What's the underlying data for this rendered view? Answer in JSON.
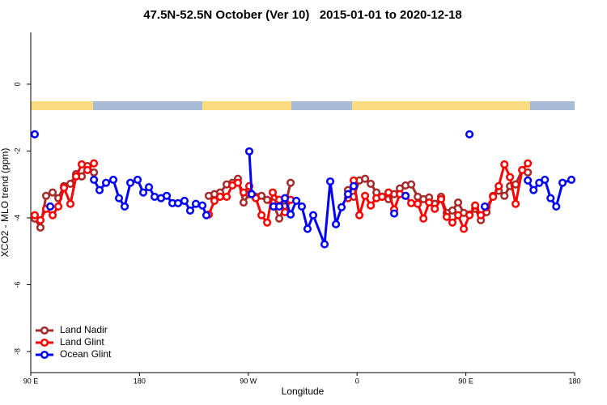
{
  "chart_data": {
    "type": "line",
    "title": "47.5N-52.5N October (Ver 10)   2015-01-01 to 2020-12-18",
    "x_label": "Longitude",
    "y_label": "XCO2 - MLO trend (ppm)",
    "xlim": [
      90,
      540
    ],
    "xticks": [
      {
        "value": 90,
        "label": "90 E"
      },
      {
        "value": 180,
        "label": "180"
      },
      {
        "value": 270,
        "label": "90 W"
      },
      {
        "value": 360,
        "label": "0"
      },
      {
        "value": 450,
        "label": "90 E"
      },
      {
        "value": 540,
        "label": "180"
      }
    ],
    "ylim": [
      -8.63,
      1.55
    ],
    "yticks": [
      0,
      -2,
      -4,
      -6,
      -8
    ],
    "legend": "bottomleft",
    "series": [
      {
        "name": "Land Nadir",
        "color": "#a52a2a",
        "x": [
          93.3,
          98.0,
          102.7,
          108.1,
          112.8,
          117.5,
          122.8,
          127.5,
          132.2,
          136.9,
          142.3,
          null,
          237.3,
          242.0,
          246.7,
          252.1,
          256.8,
          261.4,
          266.1,
          270.8,
          276.2,
          280.9,
          285.6,
          290.2,
          295.6,
          300.3,
          305.0,
          null,
          352.5,
          357.2,
          361.9,
          366.6,
          371.3,
          376.0,
          380.7,
          386.0,
          390.7,
          395.4,
          400.1,
          404.8,
          410.2,
          414.9,
          419.6,
          424.3,
          429.5,
          434.2,
          438.9,
          443.6,
          448.3,
          453.0,
          457.7,
          462.4,
          467.1,
          472.5,
          477.2,
          481.9,
          486.5,
          491.2,
          496.6,
          501.3
        ],
        "values": [
          -4.02,
          -4.29,
          -3.34,
          -3.24,
          -3.41,
          -3.05,
          -2.98,
          -2.69,
          -2.76,
          -2.45,
          -2.64,
          null,
          -3.34,
          -3.29,
          -3.24,
          -3.0,
          -2.95,
          -2.83,
          -3.54,
          -3.29,
          -3.37,
          -3.34,
          -3.46,
          -3.54,
          -4.02,
          -3.66,
          -2.95,
          null,
          -3.17,
          -3.37,
          -2.88,
          -2.83,
          -2.98,
          -3.24,
          -3.37,
          -3.44,
          -3.29,
          -3.12,
          -3.03,
          -3.0,
          -3.37,
          -3.44,
          -3.39,
          -3.58,
          -3.37,
          -3.85,
          -3.78,
          -3.54,
          -3.85,
          -3.9,
          -3.73,
          -4.07,
          -3.83,
          -3.34,
          -3.19,
          -3.34,
          -3.05,
          -3.0,
          -2.57,
          -2.64
        ]
      },
      {
        "name": "Land Glint",
        "color": "#ff0000",
        "x": [
          93.3,
          98.0,
          102.7,
          108.1,
          112.8,
          117.5,
          122.8,
          127.5,
          132.2,
          136.9,
          142.3,
          null,
          237.3,
          242.0,
          246.7,
          252.1,
          256.8,
          261.4,
          266.1,
          270.8,
          276.2,
          280.9,
          285.6,
          290.2,
          295.6,
          300.3,
          305.0,
          null,
          352.5,
          357.2,
          361.9,
          366.6,
          371.3,
          376.0,
          380.7,
          386.0,
          390.7,
          395.4,
          400.1,
          404.8,
          410.2,
          414.9,
          419.6,
          424.3,
          429.5,
          434.2,
          438.9,
          443.6,
          448.3,
          453.0,
          457.7,
          462.4,
          467.1,
          472.5,
          477.2,
          481.9,
          486.5,
          491.2,
          496.6,
          501.3
        ],
        "values": [
          -3.92,
          -4.07,
          -3.73,
          -3.92,
          -3.66,
          -3.1,
          -3.58,
          -2.76,
          -2.4,
          -2.57,
          -2.37,
          null,
          -3.9,
          -3.49,
          -3.37,
          -3.37,
          -3.03,
          -2.95,
          -3.24,
          -3.05,
          -3.41,
          -3.92,
          -4.14,
          -3.24,
          -3.46,
          -3.83,
          -3.46,
          null,
          -3.41,
          -2.88,
          -3.92,
          -3.34,
          -3.63,
          -3.41,
          -3.37,
          -3.24,
          -3.75,
          -3.29,
          -3.34,
          -3.56,
          -3.58,
          -4.02,
          -3.54,
          -3.73,
          -3.44,
          -3.97,
          -4.14,
          -3.92,
          -4.33,
          -3.92,
          -3.63,
          -3.92,
          -3.68,
          -3.37,
          -3.05,
          -2.4,
          -2.78,
          -3.58,
          -2.57,
          -2.37
        ]
      },
      {
        "name": "Ocean Glint",
        "color": "#0000ff",
        "x": [
          93.3,
          null,
          106.1,
          null,
          142.3,
          146.9,
          152.3,
          158.3,
          163.0,
          167.7,
          172.4,
          178.4,
          183.1,
          187.8,
          192.5,
          197.8,
          202.5,
          207.2,
          211.9,
          217.2,
          221.9,
          226.6,
          232.0,
          235.3,
          null,
          270.8,
          272.8,
          null,
          290.9,
          295.6,
          300.3,
          305.0,
          309.7,
          314.3,
          319.0,
          323.7,
          333.1,
          337.8,
          342.5,
          347.2,
          352.5,
          357.2,
          null,
          390.7,
          null,
          400.1,
          null,
          453.0,
          null,
          465.7,
          null,
          501.3,
          506.0,
          510.7,
          515.4,
          520.1,
          524.8,
          530.0,
          537.3
        ],
        "values": [
          -1.5,
          null,
          -3.66,
          null,
          -2.86,
          -3.17,
          -2.95,
          -2.86,
          -3.41,
          -3.66,
          -2.95,
          -2.86,
          -3.24,
          -3.08,
          -3.37,
          -3.41,
          -3.34,
          -3.56,
          -3.56,
          -3.49,
          -3.78,
          -3.58,
          -3.63,
          -3.92,
          null,
          -2.01,
          -3.29,
          null,
          -3.66,
          -3.66,
          -3.41,
          -3.9,
          -3.49,
          -3.66,
          -4.33,
          -3.92,
          -4.79,
          -2.91,
          -4.19,
          -3.68,
          -3.29,
          -3.05,
          null,
          -3.87,
          null,
          -3.34,
          null,
          -1.5,
          null,
          -3.66,
          null,
          -2.88,
          -3.17,
          -2.95,
          -2.86,
          -3.41,
          -3.66,
          -2.95,
          -2.86
        ]
      }
    ]
  }
}
